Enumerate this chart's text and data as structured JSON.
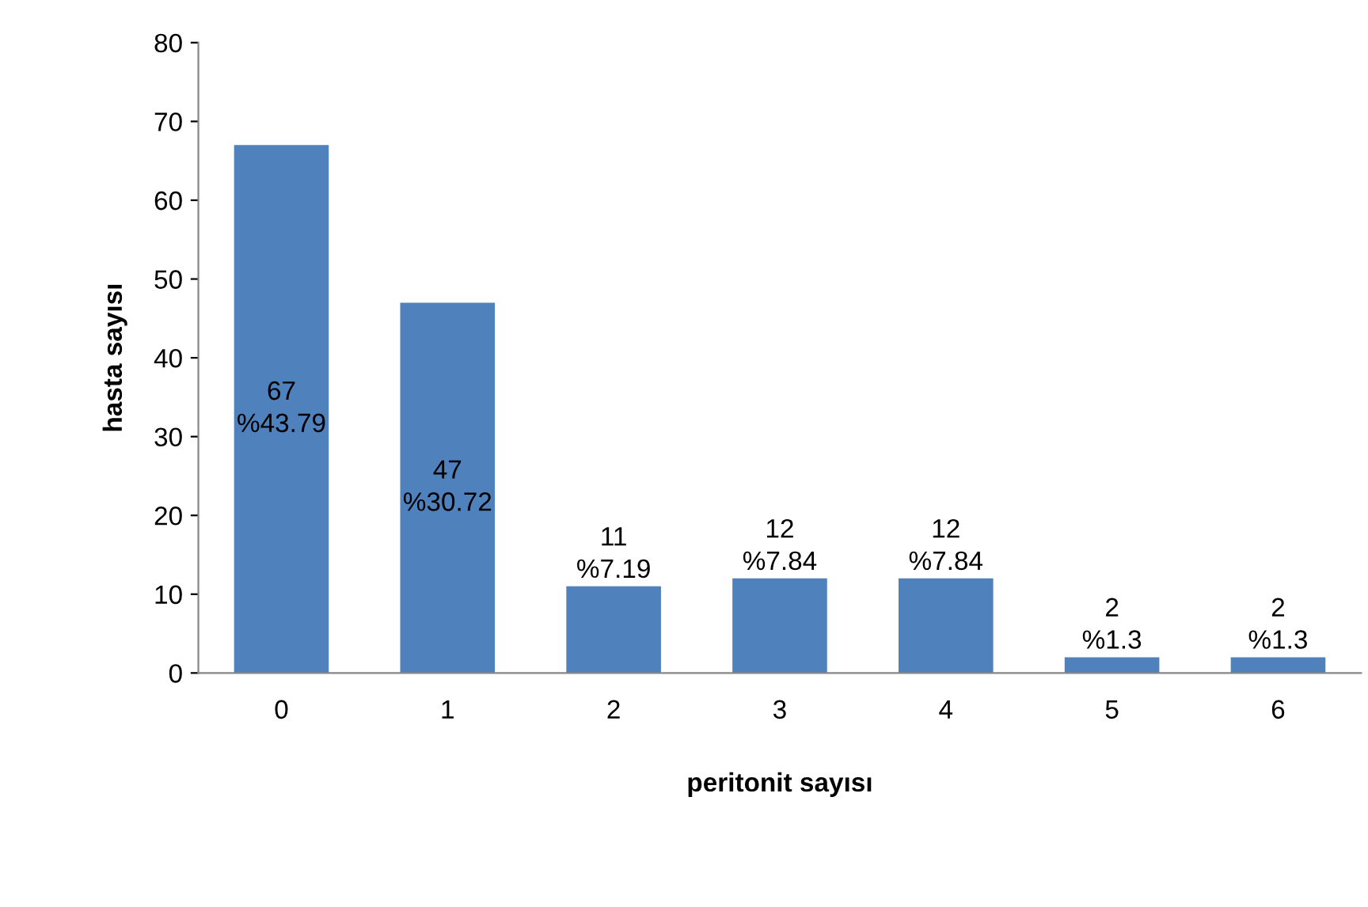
{
  "chart_data": {
    "type": "bar",
    "xlabel": "peritonit sayısı",
    "ylabel": "hasta sayısı",
    "categories": [
      "0",
      "1",
      "2",
      "3",
      "4",
      "5",
      "6"
    ],
    "values": [
      67,
      47,
      11,
      12,
      12,
      2,
      2
    ],
    "value_labels": [
      "67\n%43.79",
      "47\n%30.72",
      "11\n%7.19",
      "12\n%7.84",
      "12\n%7.84",
      "2\n%1.3",
      "2\n%1.3"
    ],
    "color": "#4f81bd",
    "ylim": [
      0,
      80
    ],
    "yticks": [
      0,
      10,
      20,
      30,
      40,
      50,
      60,
      70,
      80
    ],
    "grid": false,
    "legend": false
  }
}
